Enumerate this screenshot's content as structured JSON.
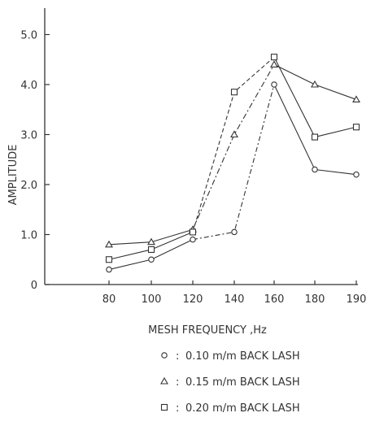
{
  "chart_data": {
    "type": "line",
    "title": "",
    "xlabel": "MESH FREQUENCY ,Hz",
    "ylabel": "AMPLITUDE",
    "categories": [
      "80",
      "100",
      "120",
      "140",
      "160",
      "180",
      "190"
    ],
    "x": [
      80,
      100,
      120,
      140,
      160,
      180,
      190
    ],
    "y_ticks": [
      {
        "label": "0",
        "value": 0
      },
      {
        "label": "1.0",
        "value": 1.0
      },
      {
        "label": "2.0",
        "value": 2.0
      },
      {
        "label": "3.0",
        "value": 3.0
      },
      {
        "label": "4.0",
        "value": 4.0
      },
      {
        "label": "5.0",
        "value": 5.0
      }
    ],
    "ylim": [
      0,
      5.5
    ],
    "grid": false,
    "legend_position": "bottom",
    "series": [
      {
        "name": "0.10 m/m BACK LASH",
        "symbol": "○",
        "marker": "circle",
        "values": [
          0.3,
          0.5,
          0.9,
          1.05,
          4.0,
          2.3,
          2.2
        ]
      },
      {
        "name": "0.15 m/m BACK LASH",
        "symbol": "△",
        "marker": "triangle",
        "values": [
          0.8,
          0.85,
          1.1,
          3.0,
          4.4,
          4.0,
          3.7
        ]
      },
      {
        "name": "0.20 m/m BACK LASH",
        "symbol": "□",
        "marker": "square",
        "values": [
          0.5,
          0.7,
          1.05,
          3.85,
          4.55,
          2.95,
          3.15
        ]
      }
    ],
    "colors": {
      "ink": "#333333",
      "background": "#ffffff"
    }
  }
}
